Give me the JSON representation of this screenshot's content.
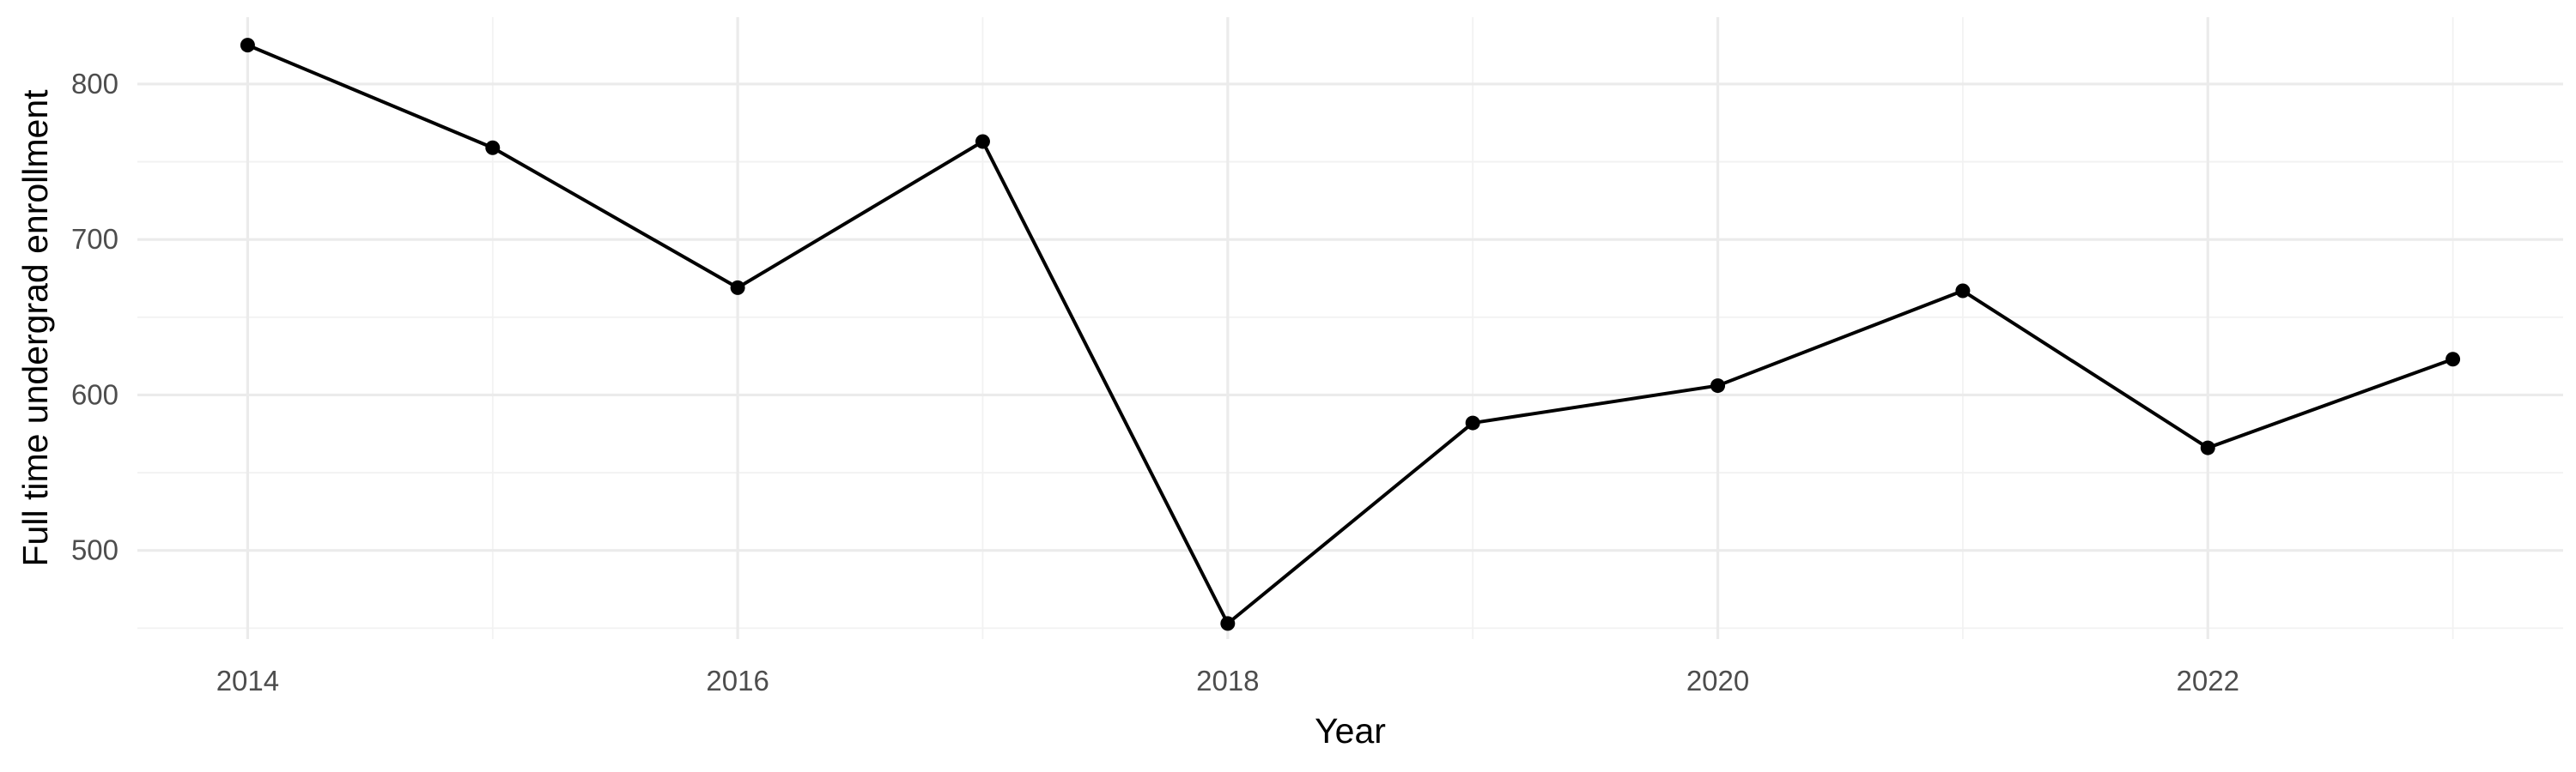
{
  "chart_data": {
    "type": "line",
    "title": "",
    "xlabel": "Year",
    "ylabel": "Full time undergrad enrollment",
    "x": [
      2014,
      2015,
      2016,
      2017,
      2018,
      2019,
      2020,
      2021,
      2022,
      2023
    ],
    "series": [
      {
        "values": [
          825,
          759,
          669,
          763,
          453,
          582,
          606,
          667,
          566,
          623
        ]
      }
    ],
    "xlim": [
      2013.55,
      2023.45
    ],
    "ylim": [
      443,
      843
    ],
    "x_ticks": [
      2014,
      2016,
      2018,
      2020,
      2022
    ],
    "x_minor_ticks": [
      2015,
      2017,
      2019,
      2021,
      2023
    ],
    "y_ticks": [
      500,
      600,
      700,
      800
    ],
    "y_minor_ticks": [
      450,
      550,
      650,
      750
    ],
    "grid": true,
    "legend": "none",
    "colors": {
      "line": "#000000",
      "point": "#000000",
      "grid_major": "#ebebeb",
      "grid_minor": "#f2f2f2",
      "tick_label": "#4d4d4d"
    }
  }
}
